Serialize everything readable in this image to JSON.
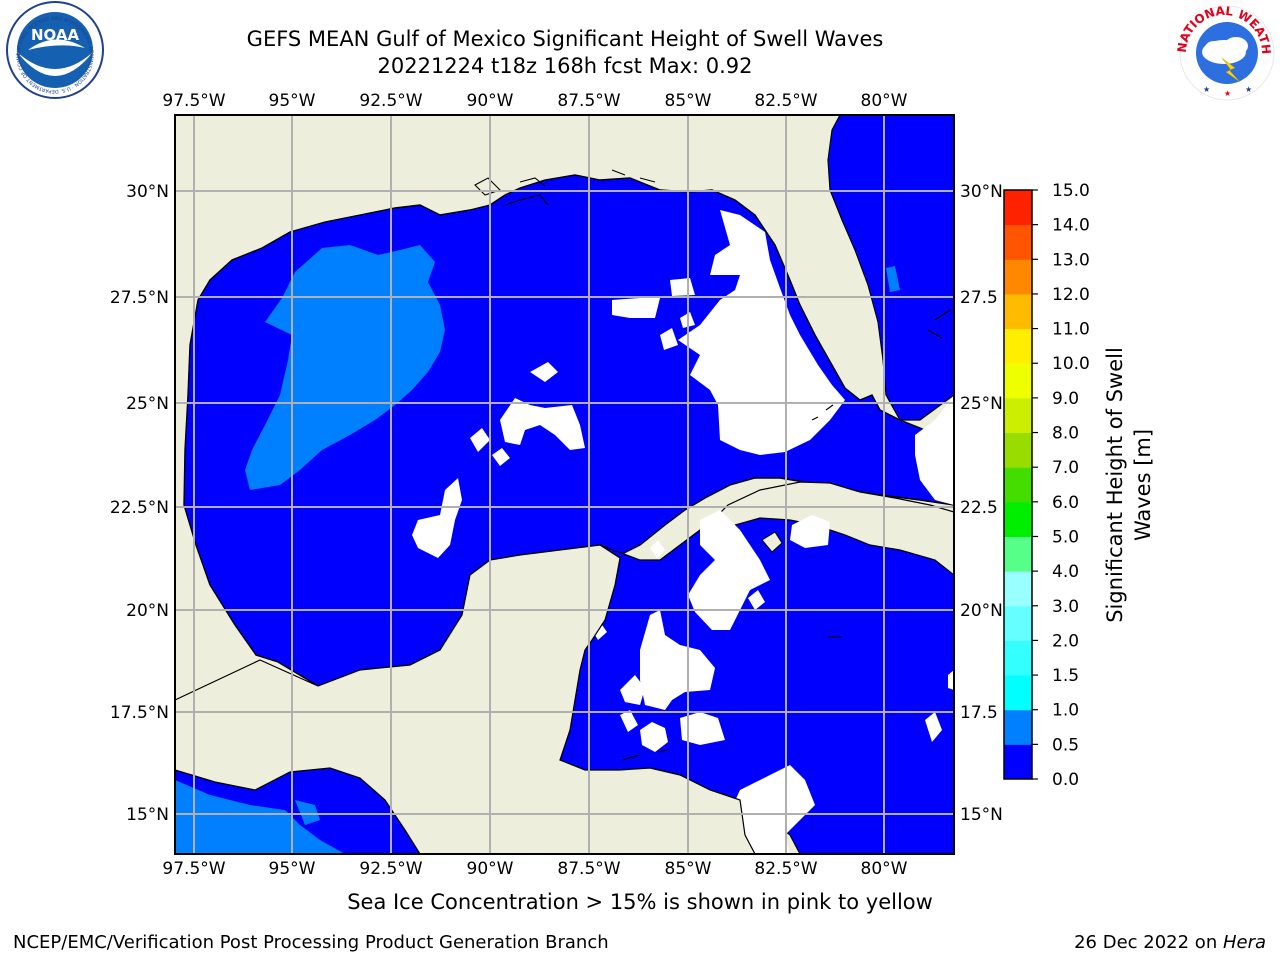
{
  "title": {
    "line1": "GEFS MEAN Gulf of Mexico Significant Height of Swell Waves",
    "line2": "20221224 t18z 168h fcst   Max: 0.92"
  },
  "logos": {
    "left": {
      "name": "noaa-logo",
      "text": "NOAA",
      "ring_text": "NATIONAL OCEANIC AND ATMOSPHERIC ADMINISTRATION · U.S. DEPARTMENT OF COMMERCE"
    },
    "right": {
      "name": "nws-logo",
      "ring_text": "NATIONAL WEATHER SERVICE"
    }
  },
  "map": {
    "lon_labels": [
      "97.5°W",
      "95°W",
      "92.5°W",
      "90°W",
      "87.5°W",
      "85°W",
      "82.5°W",
      "80°W"
    ],
    "lat_labels_left": [
      "30°N",
      "27.5°N",
      "25°N",
      "22.5°N",
      "20°N",
      "17.5°N",
      "15°N"
    ],
    "lat_labels_right": [
      "30°N",
      "27.5",
      "25°N",
      "22.5",
      "20°N",
      "17.5",
      "15°N"
    ],
    "colors": {
      "land": "#eeeedc",
      "ocean_low": "#0000ff",
      "ocean_mid": "#0080ff",
      "grid": "#b0b0b0",
      "coast": "#000000"
    }
  },
  "colorbar": {
    "label_line1": "Significant Height of Swell",
    "label_line2": "Waves [m]",
    "ticks": [
      "0.0",
      "0.5",
      "1.0",
      "1.5",
      "2.0",
      "3.0",
      "4.0",
      "5.0",
      "6.0",
      "7.0",
      "8.0",
      "9.0",
      "10.0",
      "11.0",
      "12.0",
      "13.0",
      "14.0",
      "15.0"
    ],
    "colors": [
      "#0000ff",
      "#0080ff",
      "#00ffff",
      "#33ffff",
      "#66ffff",
      "#99ffff",
      "#55ff88",
      "#00ee00",
      "#44dd00",
      "#99dd00",
      "#ccee00",
      "#eeff00",
      "#ffee00",
      "#ffbb00",
      "#ff8800",
      "#ff5500",
      "#ff2200"
    ]
  },
  "note": "Sea Ice Concentration > 15% is shown in pink to yellow",
  "credit": "NCEP/EMC/Verification Post Processing Product Generation Branch",
  "date": {
    "text": "26 Dec 2022 on ",
    "host": "Hera"
  }
}
